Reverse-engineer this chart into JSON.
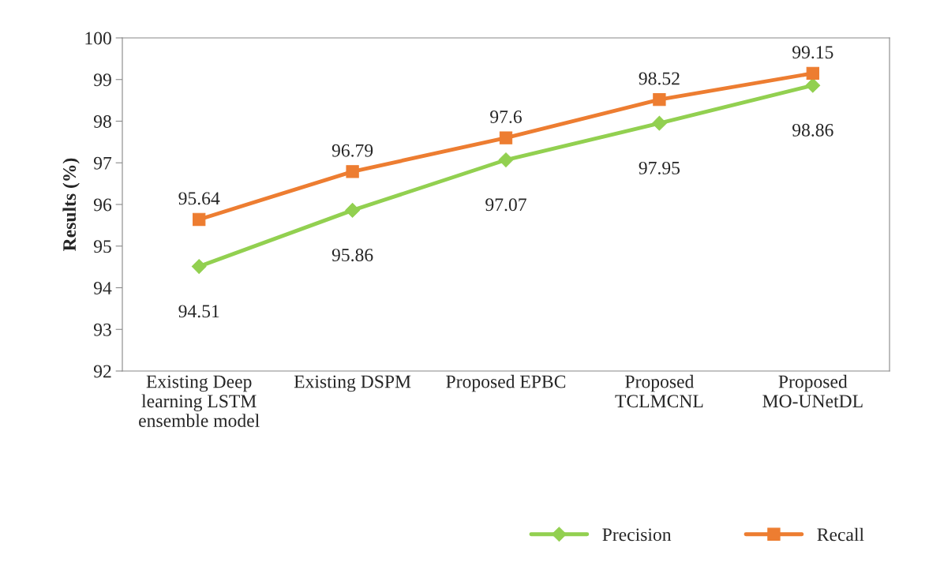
{
  "chart_data": {
    "type": "line",
    "ylabel": "Results (%)",
    "categories": [
      "Existing Deep learning LSTM ensemble model",
      "Existing DSPM",
      "Proposed EPBC",
      "Proposed TCLMCNL",
      "Proposed MO-UNetDL"
    ],
    "series": [
      {
        "name": "Precision",
        "color": "#92d050",
        "marker": "diamond",
        "values": [
          94.51,
          95.86,
          97.07,
          97.95,
          98.86
        ]
      },
      {
        "name": "Recall",
        "color": "#ed7d31",
        "marker": "square",
        "values": [
          95.64,
          96.79,
          97.6,
          98.52,
          99.15
        ]
      }
    ],
    "ylim": [
      92,
      100
    ],
    "yticks": [
      92,
      93,
      94,
      95,
      96,
      97,
      98,
      99,
      100
    ],
    "data_labels": true,
    "grid": false,
    "legend": "bottom",
    "line_style": "solid"
  }
}
